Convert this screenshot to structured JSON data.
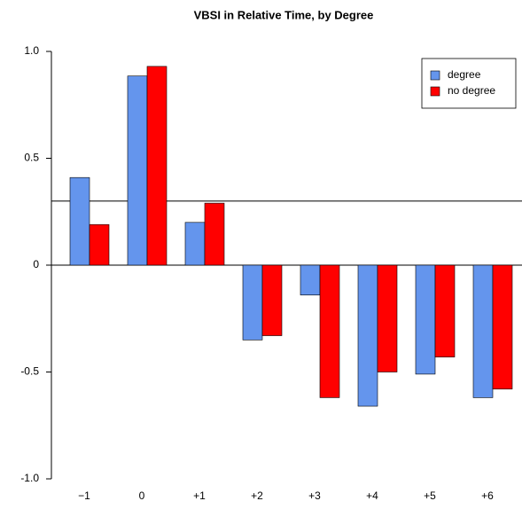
{
  "chart_data": {
    "type": "bar",
    "title": "VBSI in Relative Time, by Degree",
    "categories": [
      "−1",
      "0",
      "+1",
      "+2",
      "+3",
      "+4",
      "+5",
      "+6"
    ],
    "series": [
      {
        "name": "degree",
        "color": "#6495ed",
        "values": [
          0.41,
          0.885,
          0.2,
          -0.35,
          -0.14,
          -0.66,
          -0.51,
          -0.62
        ]
      },
      {
        "name": "no degree",
        "color": "#ff0000",
        "values": [
          0.19,
          0.93,
          0.29,
          -0.33,
          -0.62,
          -0.5,
          -0.43,
          -0.58
        ]
      }
    ],
    "reference_line": 0.3,
    "ylim": [
      -1,
      1
    ],
    "yticks": [
      {
        "value": -1,
        "label": "-1.0"
      },
      -0.5,
      0,
      0.5,
      {
        "value": 1,
        "label": "1.0"
      }
    ],
    "legend": "top-right"
  }
}
